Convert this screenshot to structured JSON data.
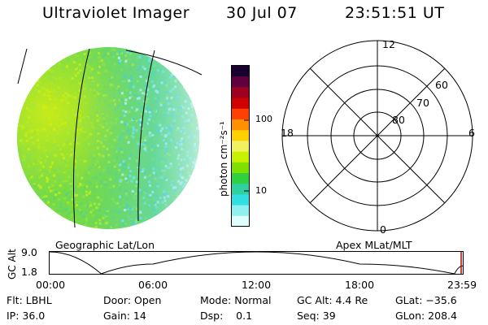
{
  "header": {
    "instrument": "Ultraviolet Imager",
    "date": "30 Jul 07",
    "time": "23:51:51 UT"
  },
  "colorbar": {
    "unit_label": "photon cm⁻²s⁻¹",
    "ticks": [
      "100",
      "10"
    ],
    "colors": [
      "#1a0030",
      "#600040",
      "#a00020",
      "#d00000",
      "#ff4000",
      "#ff9000",
      "#ffd000",
      "#f0f060",
      "#c8f000",
      "#80e000",
      "#30d040",
      "#30d0a0",
      "#30e0e0",
      "#90f0f0",
      "#e0ffff"
    ]
  },
  "image_panel": {
    "caption": "Geographic Lat/Lon",
    "palette": [
      "#6fd84a",
      "#8ae23a",
      "#b4ea20",
      "#5ed47a",
      "#4ccfb0",
      "#7ee8e8",
      "#d8f6f6"
    ]
  },
  "polar_panel": {
    "caption": "Apex MLat/MLT",
    "mlt_labels": {
      "top": "12",
      "left": "18",
      "right": "6",
      "bottom": "0"
    },
    "lat_labels": [
      "80",
      "70",
      "60"
    ]
  },
  "altitude_plot": {
    "ylabel": "GC Alt",
    "y_ticks": [
      "9.0",
      "1.8"
    ],
    "x_ticks": [
      "00:00",
      "06:00",
      "12:00",
      "18:00",
      "23:59"
    ]
  },
  "status": {
    "row1": [
      {
        "label": "Flt: LBHL"
      },
      {
        "label": "Door: Open"
      },
      {
        "label": "Mode: Normal"
      },
      {
        "label": "GC Alt: 4.4 Re"
      },
      {
        "label": "GLat: −35.6"
      }
    ],
    "row2": [
      {
        "label": "IP: 36.0"
      },
      {
        "label": "Gain: 14"
      },
      {
        "label": "Dsp:    0.1"
      },
      {
        "label": "Seq: 39"
      },
      {
        "label": "GLon: 208.4"
      }
    ]
  },
  "chart_data": {
    "type": "line",
    "series": [
      {
        "x": [
          "00:00",
          "03:00",
          "06:00",
          "12:00",
          "18:00",
          "23:30",
          "23:59"
        ],
        "values": [
          9.0,
          1.8,
          5.0,
          9.0,
          5.0,
          1.8,
          4.4
        ]
      }
    ],
    "ylabel": "GC Alt",
    "ylim": [
      1.8,
      9.0
    ],
    "xlabel": ""
  }
}
